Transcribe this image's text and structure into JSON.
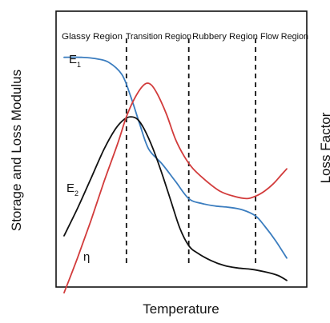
{
  "chart_data": {
    "type": "line",
    "xlabel": "Temperature",
    "ylabel": "Storage and Loss Modulus",
    "y2label": "Loss Factor",
    "region_labels": [
      "Glassy Region",
      "Transition Region",
      "Rubbery Region",
      "Flow Region"
    ],
    "xlim": [
      0,
      100
    ],
    "ylim": [
      0,
      100
    ],
    "region_boundaries": [
      28,
      56,
      86
    ],
    "grid": false,
    "series": [
      {
        "name": "E1",
        "label_main": "E",
        "label_sub": "1",
        "color": "#3b7dbf",
        "x": [
          0,
          8,
          14,
          20,
          26,
          30,
          34,
          38,
          44,
          50,
          56,
          62,
          68,
          74,
          80,
          86,
          90,
          95,
          100
        ],
        "y": [
          93,
          93,
          92.5,
          91,
          86,
          77,
          66,
          56,
          50,
          43,
          36,
          34,
          33,
          32.5,
          31.5,
          29,
          25,
          19,
          12
        ]
      },
      {
        "name": "E2",
        "label_main": "E",
        "label_sub": "2",
        "color": "#111111",
        "x": [
          0,
          6,
          12,
          18,
          23,
          27,
          30,
          33,
          36,
          40,
          44,
          48,
          52,
          56,
          60,
          66,
          72,
          78,
          84,
          90,
          96,
          100
        ],
        "y": [
          21,
          32,
          44,
          56,
          64,
          68,
          69,
          68,
          64,
          56,
          46,
          35,
          24,
          17,
          14,
          11,
          9,
          8,
          7.5,
          6.5,
          5,
          3
        ]
      },
      {
        "name": "η",
        "label_main": "η",
        "label_sub": "",
        "color": "#d23b3b",
        "x": [
          0,
          6,
          12,
          18,
          24,
          28,
          32,
          36,
          39,
          42,
          46,
          50,
          54,
          58,
          64,
          70,
          76,
          82,
          86,
          90,
          94,
          97,
          100
        ],
        "y": [
          -2,
          12,
          27,
          43,
          58,
          69,
          77,
          82,
          82,
          78,
          70,
          60,
          53,
          48,
          43,
          39,
          37,
          36,
          37,
          39,
          42,
          45,
          48
        ]
      }
    ]
  }
}
